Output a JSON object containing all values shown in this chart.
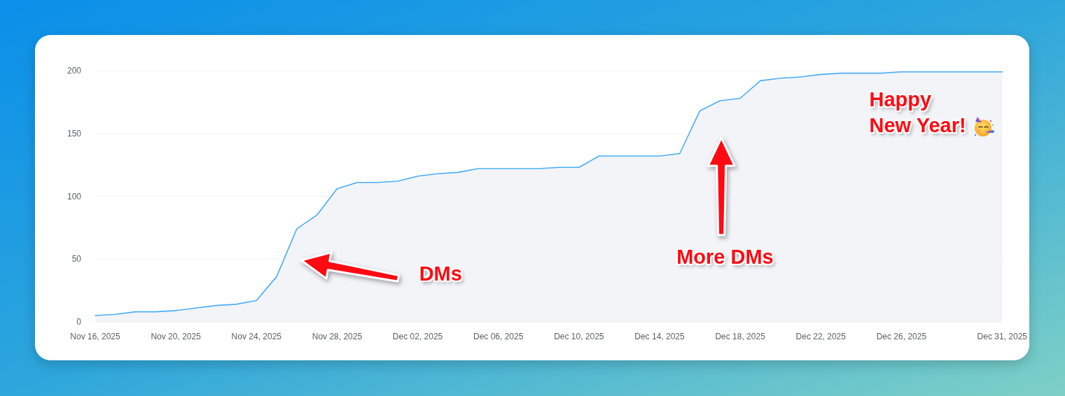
{
  "chart_data": {
    "type": "area",
    "x": [
      "2025-11-16",
      "2025-11-17",
      "2025-11-18",
      "2025-11-19",
      "2025-11-20",
      "2025-11-21",
      "2025-11-22",
      "2025-11-23",
      "2025-11-24",
      "2025-11-25",
      "2025-11-26",
      "2025-11-27",
      "2025-11-28",
      "2025-11-29",
      "2025-11-30",
      "2025-12-01",
      "2025-12-02",
      "2025-12-03",
      "2025-12-04",
      "2025-12-05",
      "2025-12-06",
      "2025-12-07",
      "2025-12-08",
      "2025-12-09",
      "2025-12-10",
      "2025-12-11",
      "2025-12-12",
      "2025-12-13",
      "2025-12-14",
      "2025-12-15",
      "2025-12-16",
      "2025-12-17",
      "2025-12-18",
      "2025-12-19",
      "2025-12-20",
      "2025-12-21",
      "2025-12-22",
      "2025-12-23",
      "2025-12-24",
      "2025-12-25",
      "2025-12-26",
      "2025-12-27",
      "2025-12-28",
      "2025-12-29",
      "2025-12-30",
      "2025-12-31"
    ],
    "values": [
      5,
      6,
      8,
      8,
      9,
      11,
      13,
      14,
      17,
      36,
      74,
      85,
      106,
      111,
      111,
      112,
      116,
      118,
      119,
      122,
      122,
      122,
      122,
      123,
      123,
      132,
      132,
      132,
      132,
      134,
      168,
      176,
      178,
      192,
      194,
      195,
      197,
      198,
      198,
      198,
      199,
      199,
      199,
      199,
      199,
      199
    ],
    "color": "#4aaef6",
    "xlim": [
      "2025-11-16",
      "2025-12-31"
    ],
    "xticks": [
      {
        "value": "2025-11-16",
        "label": "Nov 16, 2025"
      },
      {
        "value": "2025-11-20",
        "label": "Nov 20, 2025"
      },
      {
        "value": "2025-11-24",
        "label": "Nov 24, 2025"
      },
      {
        "value": "2025-11-28",
        "label": "Nov 28, 2025"
      },
      {
        "value": "2025-12-02",
        "label": "Dec 02, 2025"
      },
      {
        "value": "2025-12-06",
        "label": "Dec 06, 2025"
      },
      {
        "value": "2025-12-10",
        "label": "Dec 10, 2025"
      },
      {
        "value": "2025-12-14",
        "label": "Dec 14, 2025"
      },
      {
        "value": "2025-12-18",
        "label": "Dec 18, 2025"
      },
      {
        "value": "2025-12-22",
        "label": "Dec 22, 2025"
      },
      {
        "value": "2025-12-26",
        "label": "Dec 26, 2025"
      },
      {
        "value": "2025-12-31",
        "label": "Dec 31, 2025"
      }
    ],
    "ylim": [
      0,
      200
    ],
    "yticks": [
      0,
      50,
      100,
      150,
      200
    ],
    "grid": "y",
    "annotations": [
      "DMs",
      "More DMs",
      "Happy New Year!"
    ]
  }
}
